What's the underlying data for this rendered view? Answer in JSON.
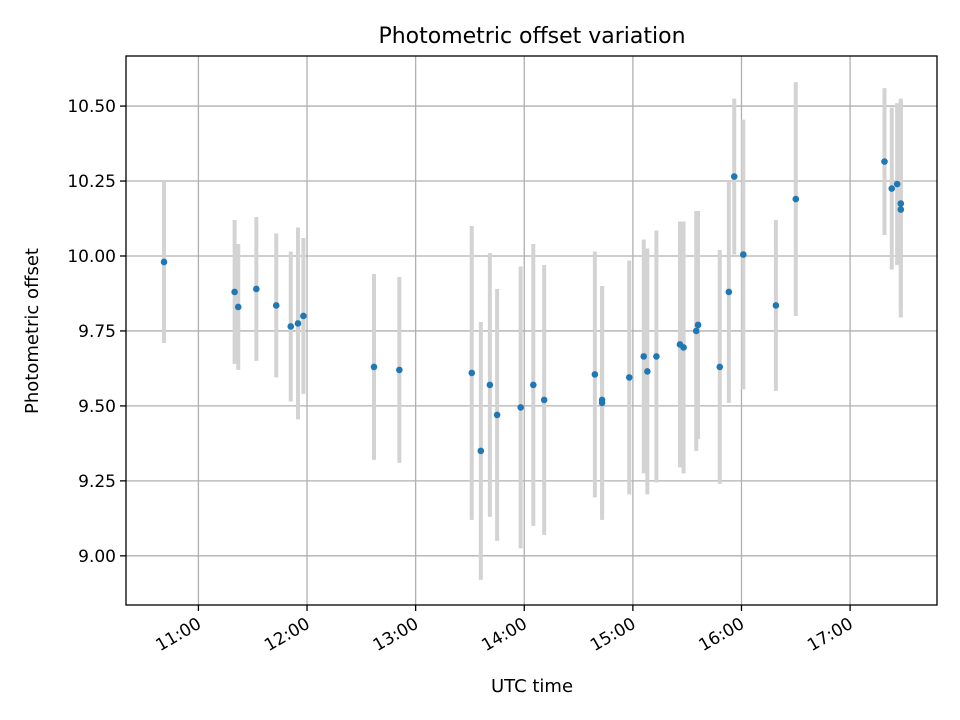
{
  "chart_data": {
    "type": "scatter",
    "title": "Photometric offset variation",
    "xlabel": "UTC time",
    "ylabel": "Photometric offset",
    "x_tick_labels": [
      "11:00",
      "12:00",
      "13:00",
      "14:00",
      "15:00",
      "16:00",
      "17:00"
    ],
    "x_ticks_hours": [
      11,
      12,
      13,
      14,
      15,
      16,
      17
    ],
    "y_tick_labels": [
      "9.00",
      "9.25",
      "9.50",
      "9.75",
      "10.00",
      "10.25",
      "10.50"
    ],
    "y_ticks": [
      9.0,
      9.25,
      9.5,
      9.75,
      10.0,
      10.25,
      10.5
    ],
    "xlim": [
      "10:20",
      "17:48"
    ],
    "ylim": [
      8.836,
      10.667
    ],
    "grid": true,
    "colors": {
      "point": "#1f77b4",
      "errorbar": "#d3d3d3"
    },
    "points": [
      {
        "x": "10:41",
        "y": 9.98,
        "err": 0.27
      },
      {
        "x": "11:20",
        "y": 9.88,
        "err": 0.24
      },
      {
        "x": "11:22",
        "y": 9.83,
        "err": 0.21
      },
      {
        "x": "11:32",
        "y": 9.89,
        "err": 0.24
      },
      {
        "x": "11:43",
        "y": 9.835,
        "err": 0.24
      },
      {
        "x": "11:51",
        "y": 9.765,
        "err": 0.25
      },
      {
        "x": "11:55",
        "y": 9.775,
        "err": 0.32
      },
      {
        "x": "11:58",
        "y": 9.8,
        "err": 0.26
      },
      {
        "x": "12:37",
        "y": 9.63,
        "err": 0.31
      },
      {
        "x": "12:51",
        "y": 9.62,
        "err": 0.31
      },
      {
        "x": "13:31",
        "y": 9.61,
        "err": 0.49
      },
      {
        "x": "13:36",
        "y": 9.35,
        "err": 0.43
      },
      {
        "x": "13:41",
        "y": 9.57,
        "err": 0.44
      },
      {
        "x": "13:45",
        "y": 9.47,
        "err": 0.42
      },
      {
        "x": "13:58",
        "y": 9.495,
        "err": 0.47
      },
      {
        "x": "14:05",
        "y": 9.57,
        "err": 0.47
      },
      {
        "x": "14:11",
        "y": 9.52,
        "err": 0.45
      },
      {
        "x": "14:39",
        "y": 9.605,
        "err": 0.41
      },
      {
        "x": "14:43",
        "y": 9.51,
        "err": 0.39
      },
      {
        "x": "14:43",
        "y": 9.52,
        "err": 0.38
      },
      {
        "x": "14:58",
        "y": 9.595,
        "err": 0.39
      },
      {
        "x": "15:06",
        "y": 9.665,
        "err": 0.39
      },
      {
        "x": "15:08",
        "y": 9.615,
        "err": 0.41
      },
      {
        "x": "15:13",
        "y": 9.665,
        "err": 0.42
      },
      {
        "x": "15:26",
        "y": 9.705,
        "err": 0.41
      },
      {
        "x": "15:28",
        "y": 9.695,
        "err": 0.42
      },
      {
        "x": "15:35",
        "y": 9.75,
        "err": 0.4
      },
      {
        "x": "15:36",
        "y": 9.77,
        "err": 0.38
      },
      {
        "x": "15:48",
        "y": 9.63,
        "err": 0.39
      },
      {
        "x": "15:53",
        "y": 9.88,
        "err": 0.37
      },
      {
        "x": "15:56",
        "y": 10.265,
        "err": 0.26
      },
      {
        "x": "16:01",
        "y": 10.005,
        "err": 0.45
      },
      {
        "x": "16:19",
        "y": 9.835,
        "err": 0.285
      },
      {
        "x": "16:30",
        "y": 10.19,
        "err": 0.39
      },
      {
        "x": "17:19",
        "y": 10.315,
        "err": 0.245
      },
      {
        "x": "17:23",
        "y": 10.225,
        "err": 0.27
      },
      {
        "x": "17:26",
        "y": 10.24,
        "err": 0.27
      },
      {
        "x": "17:28",
        "y": 10.175,
        "err": 0.35
      },
      {
        "x": "17:28",
        "y": 10.155,
        "err": 0.36
      }
    ]
  }
}
